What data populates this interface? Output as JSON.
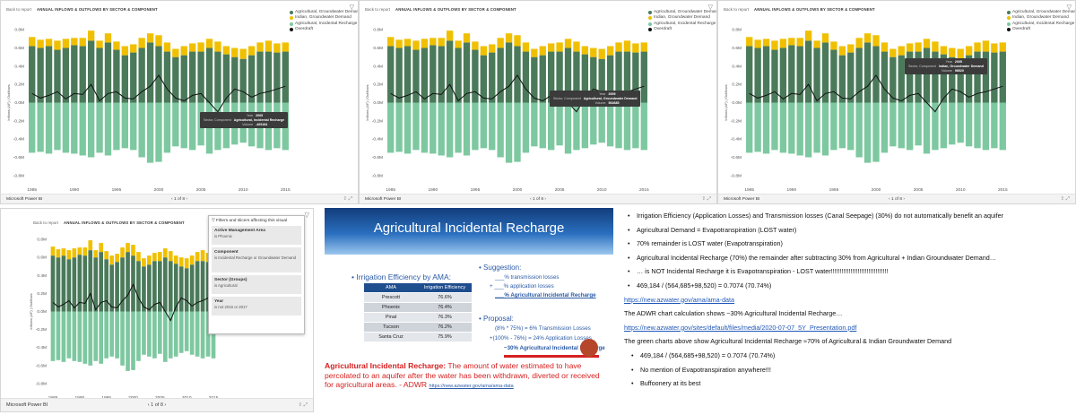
{
  "report_common": {
    "back_label": "Back to report",
    "visual_title": "ANNUAL INFLOWS & OUTFLOWS BY SECTOR & COMPONENT",
    "app_name": "Microsoft Power BI",
    "pager": "1 of 8",
    "y_axis_label": "Inflows (AF) | Outflows",
    "legend": [
      {
        "label": "Agricultural, Groundwater Demand",
        "color": "#4a7a5a"
      },
      {
        "label": "Indian, Groundwater Demand",
        "color": "#f0c000"
      },
      {
        "label": "Agricultural, Incidental Recharge",
        "color": "#7dc8a0"
      },
      {
        "label": "Overdraft",
        "color": "#111111"
      }
    ],
    "y_ticks": [
      "0.8M",
      "0.6M",
      "0.4M",
      "0.2M",
      "0.0M",
      "-0.2M",
      "-0.4M",
      "-0.6M",
      "-0.8M"
    ],
    "x_ticks": [
      "1985",
      "1990",
      "1995",
      "2000",
      "2005",
      "2010",
      "2015"
    ]
  },
  "tooltip_labels": {
    "year": "Year",
    "sector": "Sector, Component",
    "value": "Volume"
  },
  "tooltips": [
    {
      "year": "2005",
      "sector": "Agricultural, Incidental Recharge",
      "value": "-469184"
    },
    {
      "year": "2005",
      "sector": "Agricultural, Groundwater Demand",
      "value": "564685"
    },
    {
      "year": "2005",
      "sector": "Indian, Groundwater Demand",
      "value": "98520"
    }
  ],
  "filters": {
    "header": "Filters and slicers affecting this visual",
    "cards": [
      {
        "title": "Active Management Area",
        "value": "is Phoenix"
      },
      {
        "title": "Component",
        "value": "is Incidental Recharge or Groundwater Demand"
      },
      {
        "title": "Sector (Groups)",
        "value": "is Agricultural"
      },
      {
        "title": "Year",
        "value": "is not 2016 or 2017"
      }
    ]
  },
  "chart_data": {
    "type": "bar",
    "x": [
      1985,
      1986,
      1987,
      1988,
      1989,
      1990,
      1991,
      1992,
      1993,
      1994,
      1995,
      1996,
      1997,
      1998,
      1999,
      2000,
      2001,
      2002,
      2003,
      2004,
      2005,
      2006,
      2007,
      2008,
      2009,
      2010,
      2011,
      2012,
      2013,
      2014,
      2015
    ],
    "ylim": [
      -0.9,
      0.9
    ],
    "series": [
      {
        "name": "Agricultural, Groundwater Demand",
        "values": [
          0.62,
          0.6,
          0.62,
          0.58,
          0.6,
          0.63,
          0.62,
          0.68,
          0.6,
          0.66,
          0.58,
          0.52,
          0.55,
          0.6,
          0.66,
          0.62,
          0.56,
          0.5,
          0.52,
          0.56,
          0.56,
          0.6,
          0.56,
          0.53,
          0.5,
          0.48,
          0.52,
          0.56,
          0.56,
          0.55,
          0.56
        ]
      },
      {
        "name": "Indian, Groundwater Demand",
        "values": [
          0.1,
          0.09,
          0.08,
          0.1,
          0.1,
          0.08,
          0.09,
          0.11,
          0.08,
          0.1,
          0.09,
          0.1,
          0.09,
          0.11,
          0.1,
          0.12,
          0.1,
          0.09,
          0.1,
          0.09,
          0.1,
          0.1,
          0.11,
          0.09,
          0.1,
          0.11,
          0.1,
          0.1,
          0.12,
          0.1,
          0.1
        ]
      },
      {
        "name": "Agricultural, Incidental Recharge",
        "values": [
          -0.55,
          -0.54,
          -0.56,
          -0.52,
          -0.55,
          -0.56,
          -0.58,
          -0.6,
          -0.55,
          -0.58,
          -0.52,
          -0.5,
          -0.52,
          -0.6,
          -0.66,
          -0.65,
          -0.55,
          -0.48,
          -0.5,
          -0.52,
          -0.47,
          -0.56,
          -0.52,
          -0.5,
          -0.46,
          -0.44,
          -0.48,
          -0.5,
          -0.52,
          -0.5,
          -0.52
        ]
      },
      {
        "name": "Overdraft",
        "values": [
          0.1,
          0.05,
          0.08,
          0.12,
          0.04,
          0.1,
          0.09,
          0.2,
          0.02,
          0.1,
          0.12,
          0.05,
          0.04,
          0.12,
          0.18,
          0.3,
          0.15,
          0.05,
          0.02,
          0.08,
          0.1,
          0.0,
          -0.1,
          0.05,
          0.15,
          0.12,
          0.06,
          0.1,
          0.12,
          0.15,
          0.18
        ]
      }
    ]
  },
  "slide": {
    "title": "Agricultural Incidental Recharge",
    "ie_heading": "Irrigation Efficiency by AMA:",
    "table_headers": [
      "AMA",
      "Irrigation Efficiency"
    ],
    "table_rows": [
      [
        "Prescott",
        "76.6%"
      ],
      [
        "Phoenix",
        "76.4%"
      ],
      [
        "Pinal",
        "76.3%"
      ],
      [
        "Tucson",
        "76.2%"
      ],
      [
        "Santa Cruz",
        "75.9%"
      ]
    ],
    "suggestion_heading": "Suggestion:",
    "suggestion_lines": [
      "___% transmission losses",
      "+ ___% application losses",
      "___% Agricultural Incidental Recharge"
    ],
    "proposal_heading": "Proposal:",
    "proposal_lines": [
      "(8% * 75%) = 6% Transmission Losses",
      "+(100% - 76%) = 24% Application Losses",
      "~30% Agricultural Incidental Recharge"
    ],
    "note_bold": "Agricultural Incidental Recharge:",
    "note_text": " The amount of water estimated to have percolated to an aquifer after the water has been withdrawn, diverted or received for agricultural areas. - ADWR",
    "note_link": "https://new.azwater.gov/ama/ama-data"
  },
  "notes": [
    {
      "type": "bullet",
      "text": "Irrigation Efficiency (Application Losses) and Transmission losses (Canal Seepage) (30%) do not automatically benefit an aquifer"
    },
    {
      "type": "bullet",
      "text": "Agricultural Demand  =  Evapotranspiration  (LOST water)"
    },
    {
      "type": "bullet",
      "text": "70% remainder is LOST water (Evapotranspiration)"
    },
    {
      "type": "bullet",
      "text": "Agricultural Incidental Recharge (70%) the remainder after subtracting 30% from Agricultural + Indian Groundwater Demand…"
    },
    {
      "type": "bullet",
      "text": "… is NOT Incidental Recharge it is Evapotranspiration - LOST water!!!!!!!!!!!!!!!!!!!!!!!!!!!!!!!!"
    },
    {
      "type": "bullet",
      "text": "469,184 / (564,685+98,520) = 0.7074 (70.74%)"
    },
    {
      "type": "link",
      "text": "https://new.azwater.gov/ama/ama-data"
    },
    {
      "type": "plain",
      "text": "The ADWR chart calculation shows ~30% Agricultural Incidental Recharge…"
    },
    {
      "type": "link",
      "text": "https://new.azwater.gov/sites/default/files/media/2020-07-07_5Y_Presentation.pdf"
    },
    {
      "type": "plain",
      "text": "The green charts above show Agricultural Incidental Recharge ≈70% of Agricultural & Indian Groundwater Demand"
    },
    {
      "type": "bullet",
      "text": "469,184 / (564,685+98,520) = 0.7074 (70.74%)"
    },
    {
      "type": "bullet",
      "text": "No mention of Evapotranspiration anywhere!!!"
    },
    {
      "type": "bullet",
      "text": "Buffoonery at its best"
    }
  ]
}
